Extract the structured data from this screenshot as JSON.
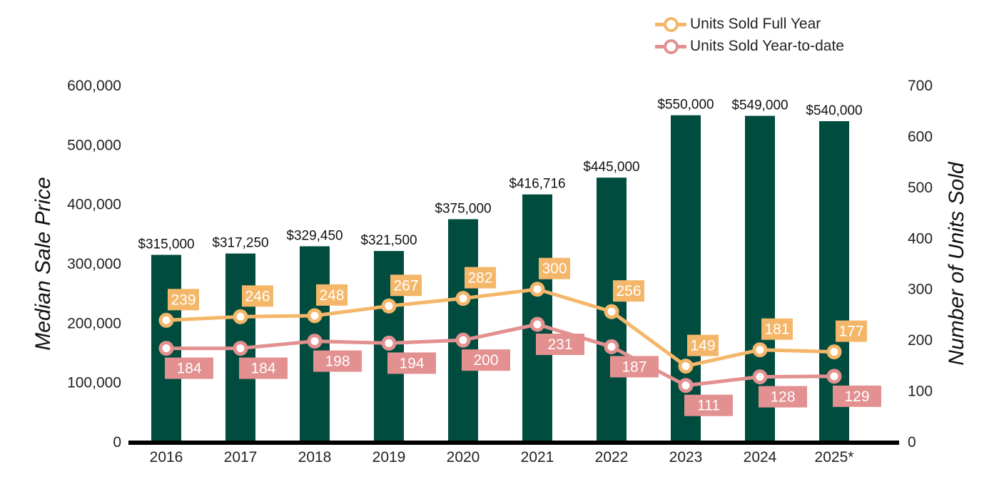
{
  "chart_data": {
    "type": "bar",
    "categories": [
      "2016",
      "2017",
      "2018",
      "2019",
      "2020",
      "2021",
      "2022",
      "2023",
      "2024",
      "2025*"
    ],
    "bar_series": {
      "values": [
        315000,
        317250,
        329450,
        321500,
        375000,
        416716,
        445000,
        550000,
        549000,
        540000
      ],
      "labels": [
        "$315,000",
        "$317,250",
        "$329,450",
        "$321,500",
        "$375,000",
        "$416,716",
        "$445,000",
        "$550,000",
        "$549,000",
        "$540,000"
      ],
      "color": "#004D40"
    },
    "line_series": [
      {
        "name": "Units Sold Full Year",
        "values": [
          239,
          246,
          248,
          267,
          282,
          300,
          256,
          149,
          181,
          177
        ],
        "color": "#F4B76A",
        "label_position": "above"
      },
      {
        "name": "Units Sold Year-to-date",
        "values": [
          184,
          184,
          198,
          194,
          200,
          231,
          187,
          111,
          128,
          129
        ],
        "color": "#E39090",
        "label_position": "below"
      }
    ],
    "ylabel": "Median Sale Price",
    "y2label": "Number of Units Sold",
    "ylim": [
      0,
      600000
    ],
    "y2lim": [
      0,
      700
    ],
    "yticks": [
      "0",
      "100,000",
      "200,000",
      "300,000",
      "400,000",
      "500,000",
      "600,000"
    ],
    "y2ticks": [
      "0",
      "100",
      "200",
      "300",
      "400",
      "500",
      "600",
      "700"
    ],
    "legend": "top-right",
    "grid": false
  }
}
